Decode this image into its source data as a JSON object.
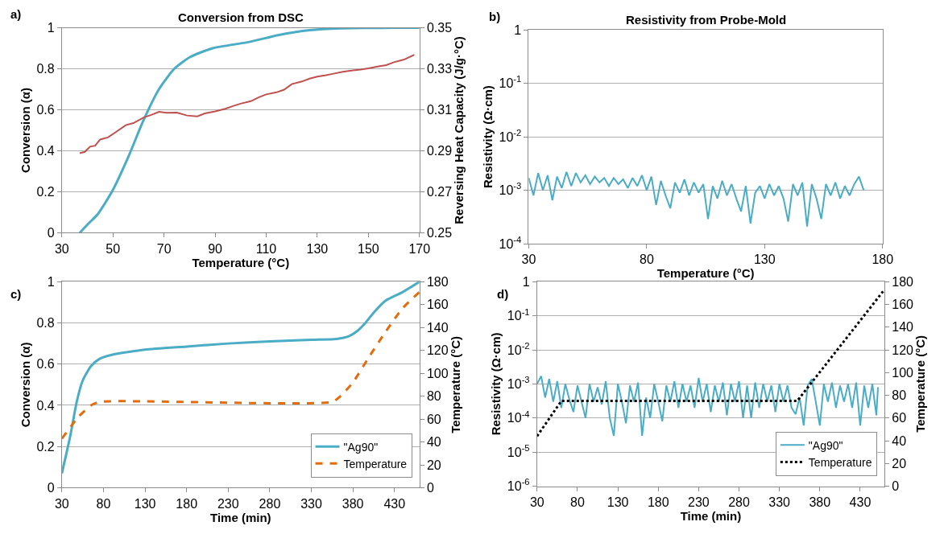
{
  "chart_data": [
    {
      "type": "line",
      "title": "Conversion from DSC",
      "xlabel": "Temperature (°C)",
      "ylabel": "Conversion (α)",
      "y2label": "Reversing Heat Capacity (J/g·°C)",
      "annotations": [
        "a)"
      ],
      "xlim": [
        30,
        170
      ],
      "xticks": [
        30,
        50,
        70,
        90,
        110,
        130,
        150,
        170
      ],
      "ylim": [
        0,
        1
      ],
      "yticks": [
        0,
        0.2,
        0.4,
        0.6,
        0.8,
        1
      ],
      "y2lim": [
        0.25,
        0.35
      ],
      "y2ticks": [
        {
          "value": 0.25,
          "label": "0.25"
        },
        0.27,
        0.29,
        0.31,
        0.33,
        {
          "value": 0.35,
          "label": "0.35"
        }
      ],
      "grid": "y",
      "legend": false,
      "series": [
        {
          "color": "#4bacc6",
          "x": [
            37,
            40,
            44,
            50,
            56,
            62,
            68,
            74,
            80,
            89,
            103,
            115,
            127,
            139,
            150,
            160,
            170
          ],
          "values": [
            0,
            0.04,
            0.09,
            0.21,
            0.37,
            0.55,
            0.7,
            0.8,
            0.856,
            0.9,
            0.93,
            0.965,
            0.988,
            0.997,
            0.999,
            1,
            1
          ]
        },
        {
          "color": "#c0504d",
          "axis": "y2",
          "x": [
            37,
            39,
            41,
            43,
            45,
            48,
            51,
            55,
            58,
            62,
            65,
            68,
            71,
            75,
            79,
            83,
            86,
            90,
            94,
            97,
            100,
            104,
            107,
            110,
            114,
            117,
            120,
            124,
            127,
            130,
            133,
            136,
            140,
            144,
            147,
            150,
            154,
            157,
            160,
            164,
            168
          ],
          "values": [
            0.2888,
            0.2895,
            0.292,
            0.2925,
            0.2955,
            0.2965,
            0.299,
            0.3025,
            0.3035,
            0.3062,
            0.3075,
            0.309,
            0.3085,
            0.3086,
            0.3072,
            0.3068,
            0.3082,
            0.3092,
            0.3105,
            0.3118,
            0.313,
            0.3142,
            0.316,
            0.3175,
            0.3185,
            0.3198,
            0.3225,
            0.3238,
            0.3252,
            0.3262,
            0.3268,
            0.3275,
            0.3285,
            0.3292,
            0.3296,
            0.3302,
            0.3312,
            0.3318,
            0.3332,
            0.3345,
            0.3368
          ]
        }
      ]
    },
    {
      "type": "line",
      "title": "Resistivity from Probe-Mold",
      "xlabel": "Temperature (°C)",
      "ylabel": "Resistivity (Ω·cm)",
      "annotations": [
        "b)"
      ],
      "log": "y",
      "xlim": [
        30,
        180
      ],
      "xticks": [
        30,
        80,
        130,
        180
      ],
      "ylim": [
        0.0001,
        1
      ],
      "yticks": [
        {
          "value": 0.0001,
          "label": "10$^{-4}$"
        },
        {
          "value": 0.001,
          "label": "10$^{-3}$"
        },
        {
          "value": 0.01,
          "label": "10$^{-2}$"
        },
        {
          "value": 0.1,
          "label": "10$^{-1}$"
        },
        1
      ],
      "grid": "y",
      "legend": false,
      "series": [
        {
          "color": "#4bacc6",
          "x": [
            30,
            32,
            34,
            36,
            38,
            40,
            42,
            44,
            46,
            48,
            50,
            52,
            54,
            56,
            58,
            60,
            62,
            64,
            66,
            68,
            70,
            72,
            74,
            76,
            78,
            80,
            82,
            84,
            86,
            88,
            90,
            92,
            94,
            96,
            98,
            100,
            102,
            104,
            106,
            108,
            110,
            112,
            114,
            116,
            118,
            120,
            122,
            124,
            126,
            128,
            130,
            132,
            134,
            136,
            138,
            140,
            142,
            144,
            146,
            148,
            150,
            152,
            154,
            156,
            158,
            160,
            162,
            164,
            166,
            168,
            170,
            172
          ],
          "values": [
            0.0017,
            0.0008,
            0.0021,
            0.001,
            0.0019,
            0.00065,
            0.0018,
            0.0011,
            0.0022,
            0.0012,
            0.0021,
            0.0014,
            0.0019,
            0.0013,
            0.0018,
            0.0014,
            0.0017,
            0.0012,
            0.0017,
            0.0013,
            0.0016,
            0.0011,
            0.0017,
            0.0012,
            0.0019,
            0.001,
            0.0018,
            0.00053,
            0.0015,
            0.0008,
            0.00046,
            0.0014,
            0.0009,
            0.0016,
            0.0008,
            0.0014,
            0.0009,
            0.0013,
            0.00029,
            0.0012,
            0.0007,
            0.0015,
            0.0008,
            0.0013,
            0.0007,
            0.0004,
            0.0012,
            0.00024,
            0.0009,
            0.0012,
            0.0007,
            0.0013,
            0.0008,
            0.0012,
            0.0007,
            0.00026,
            0.0013,
            0.0008,
            0.0014,
            0.00021,
            0.0013,
            0.0007,
            0.00029,
            0.0013,
            0.0008,
            0.0014,
            0.0007,
            0.0012,
            0.0008,
            0.0013,
            0.0018,
            0.001
          ]
        }
      ]
    },
    {
      "type": "line",
      "xlabel": "Time (min)",
      "ylabel": "Conversion (α)",
      "y2label": "Temperature (°C)",
      "annotations": [
        "c)"
      ],
      "xlim": [
        30,
        460
      ],
      "xticks": [
        30,
        80,
        130,
        180,
        230,
        280,
        330,
        380,
        430
      ],
      "ylim": [
        0,
        1
      ],
      "yticks": [
        0,
        0.2,
        0.4,
        0.6,
        0.8,
        1
      ],
      "y2lim": [
        0,
        180
      ],
      "y2ticks": [
        0,
        20,
        40,
        60,
        80,
        100,
        120,
        140,
        160,
        180
      ],
      "grid": "y",
      "legend": "bottom right",
      "series": [
        {
          "name": "\"Ag90\"",
          "color": "#4bacc6",
          "x": [
            30,
            40,
            48,
            55,
            65,
            75,
            90,
            130,
            180,
            230,
            280,
            330,
            360,
            375,
            385,
            395,
            405,
            420,
            440,
            460
          ],
          "values": [
            0.07,
            0.25,
            0.42,
            0.52,
            0.59,
            0.625,
            0.645,
            0.67,
            0.685,
            0.7,
            0.71,
            0.718,
            0.722,
            0.735,
            0.76,
            0.8,
            0.85,
            0.91,
            0.95,
            1
          ]
        },
        {
          "name": "Temperature",
          "color": "#e46c0a",
          "axis": "y2",
          "line_style": "dashed",
          "x": [
            30,
            50,
            65,
            75,
            355,
            365,
            380,
            400,
            420,
            440,
            460
          ],
          "values": [
            43,
            62,
            72,
            75,
            75,
            80,
            92,
            115,
            137,
            157,
            171
          ]
        }
      ]
    },
    {
      "type": "line",
      "xlabel": "Time (min)",
      "ylabel": "Resistivity (Ω·cm)",
      "y2label": "Temperature (°C)",
      "annotations": [
        "d)"
      ],
      "log": "y",
      "xlim": [
        30,
        460
      ],
      "xticks": [
        30,
        80,
        130,
        180,
        230,
        280,
        330,
        380,
        430
      ],
      "ylim": [
        1e-06,
        1
      ],
      "yticks": [
        {
          "value": 1e-06,
          "label": "10$^{-6}$"
        },
        {
          "value": 1e-05,
          "label": "10$^{-5}$"
        },
        {
          "value": 0.0001,
          "label": "10$^{-4}$"
        },
        {
          "value": 0.001,
          "label": "10$^{-3}$"
        },
        {
          "value": 0.01,
          "label": "10$^{-2}$"
        },
        {
          "value": 0.1,
          "label": "10$^{-1}$"
        },
        1
      ],
      "y2lim": [
        0,
        180
      ],
      "y2ticks": [
        0,
        20,
        40,
        60,
        80,
        100,
        120,
        140,
        160,
        180
      ],
      "grid": "y",
      "legend": "bottom right",
      "series": [
        {
          "name": "\"Ag90\"",
          "color": "#4bacc6",
          "x": [
            30,
            35,
            40,
            45,
            50,
            55,
            60,
            65,
            70,
            75,
            80,
            85,
            90,
            95,
            100,
            105,
            110,
            115,
            120,
            125,
            130,
            135,
            140,
            145,
            150,
            155,
            160,
            165,
            170,
            175,
            180,
            185,
            190,
            195,
            200,
            205,
            210,
            215,
            220,
            225,
            230,
            235,
            240,
            245,
            250,
            255,
            260,
            265,
            270,
            275,
            280,
            285,
            290,
            295,
            300,
            305,
            310,
            315,
            320,
            325,
            330,
            335,
            340,
            345,
            350,
            355,
            360,
            365,
            370,
            375,
            380,
            385,
            390,
            395,
            400,
            405,
            410,
            415,
            420,
            425,
            430,
            435,
            440,
            445,
            450,
            452
          ],
          "values": [
            0.001,
            0.0017,
            0.0004,
            0.0014,
            0.0003,
            0.0012,
            0.0002,
            0.001,
            0.00035,
            0.00015,
            0.0009,
            0.0003,
            0.0001,
            0.001,
            0.0003,
            0.0008,
            0.00025,
            0.0012,
            0.0001,
            3e-05,
            0.001,
            0.0003,
            7e-05,
            0.0009,
            0.0003,
            0.0011,
            3e-05,
            0.0004,
            0.0001,
            0.001,
            0.0003,
            8e-05,
            0.0009,
            0.0003,
            0.0012,
            0.0002,
            0.001,
            0.0003,
            0.0009,
            0.0002,
            0.0015,
            0.0003,
            0.001,
            0.00015,
            0.0009,
            0.0003,
            0.0011,
            0.00012,
            0.001,
            0.0003,
            0.0012,
            0.0001,
            0.0009,
            0.0001,
            0.0011,
            0.0002,
            0.001,
            0.0003,
            0.0009,
            0.00015,
            0.001,
            0.0003,
            0.0009,
            0.0002,
            0.00013,
            0.0004,
            6e-05,
            0.0009,
            0.0014,
            0.0003,
            6e-05,
            0.001,
            0.0003,
            0.0011,
            0.0002,
            0.0009,
            0.0003,
            0.001,
            0.0002,
            0.0011,
            6e-05,
            0.0009,
            0.0002,
            0.001,
            0.00012,
            0.0008
          ]
        },
        {
          "name": "Temperature",
          "color": "#000000",
          "axis": "y2",
          "line_style": "dotted",
          "x": [
            30,
            60,
            352,
            460
          ],
          "values": [
            44,
            75,
            75,
            173
          ]
        }
      ]
    }
  ]
}
